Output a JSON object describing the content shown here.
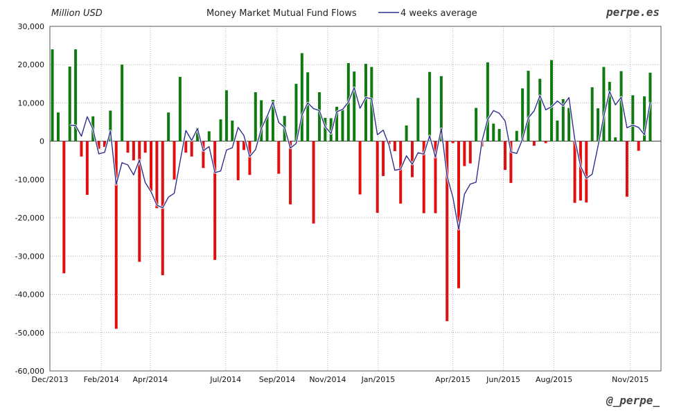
{
  "header": {
    "unit_label": "Million USD",
    "brand_top": "perpe.es",
    "brand_bottom": "@_perpe_"
  },
  "colors": {
    "positive": "#0f7a0f",
    "negative": "#e01010",
    "average_line": "#2e2e8c",
    "grid": "#b0b0b0"
  },
  "chart_data": {
    "type": "bar",
    "title": "Money Market Mutual Fund Flows",
    "legend": [
      {
        "name": "4 weeks average",
        "kind": "line"
      }
    ],
    "legend_position": "top-center",
    "grid": true,
    "xlabel": "",
    "ylabel": "Million USD",
    "ylim": [
      -60000,
      30000
    ],
    "y_ticks": [
      30000,
      20000,
      10000,
      0,
      -10000,
      -20000,
      -30000,
      -40000,
      -50000,
      -60000
    ],
    "y_tick_labels": [
      "30,000",
      "20,000",
      "10,000",
      "0",
      "-10,000",
      "-20,000",
      "-30,000",
      "-40,000",
      "-50,000",
      "-60,000"
    ],
    "x_range": [
      "2013-12-01",
      "2015-12-08"
    ],
    "x_ticks": [
      {
        "date": "2013-12-01",
        "label": "Dec/2013"
      },
      {
        "date": "2014-02-01",
        "label": "Feb/2014"
      },
      {
        "date": "2014-04-01",
        "label": "Apr/2014"
      },
      {
        "date": "2014-07-01",
        "label": "Jul/2014"
      },
      {
        "date": "2014-09-01",
        "label": "Sep/2014"
      },
      {
        "date": "2014-11-01",
        "label": "Nov/2014"
      },
      {
        "date": "2015-01-01",
        "label": "Jan/2015"
      },
      {
        "date": "2015-04-01",
        "label": "Apr/2015"
      },
      {
        "date": "2015-06-01",
        "label": "Jun/2015"
      },
      {
        "date": "2015-08-01",
        "label": "Aug/2015"
      },
      {
        "date": "2015-11-01",
        "label": "Nov/2015"
      }
    ],
    "series": [
      {
        "name": "Money Market Mutual Fund Flows",
        "type": "bar",
        "start_date": "2013-12-04",
        "interval_days": 7,
        "values": [
          24000,
          7500,
          -34500,
          19500,
          24000,
          -4000,
          -14000,
          6500,
          -2000,
          -1500,
          8000,
          -49000,
          20000,
          -3000,
          -5000,
          -31500,
          -3000,
          -13000,
          -17500,
          -35000,
          7500,
          -10000,
          16800,
          -3000,
          -4000,
          3500,
          -7000,
          2600,
          -31000,
          5700,
          13300,
          5400,
          -10200,
          -2300,
          -8800,
          12800,
          10700,
          6600,
          10800,
          -8500,
          6600,
          -16500,
          15000,
          23000,
          18000,
          -21500,
          12800,
          6100,
          6000,
          9000,
          8400,
          20400,
          18200,
          -13900,
          20200,
          19400,
          -18700,
          -9100,
          -800,
          -2600,
          -16300,
          4100,
          -9400,
          11300,
          -18800,
          18100,
          -18800,
          17000,
          -47000,
          -500,
          -38400,
          -6500,
          -5800,
          8700,
          -1400,
          20600,
          4600,
          3200,
          -7500,
          -10900,
          2700,
          13800,
          18400,
          -1200,
          16300,
          -500,
          21200,
          5400,
          11000,
          8700,
          -16100,
          -15500,
          -16000,
          14100,
          8600,
          19400,
          15500,
          1000,
          18300,
          -14500,
          12000,
          -2500,
          11700,
          17900
        ]
      },
      {
        "name": "4 weeks average",
        "type": "line",
        "start_date": "2013-12-04",
        "interval_days": 7,
        "values": [
          null,
          null,
          null,
          4200,
          4100,
          1300,
          6400,
          3100,
          -3300,
          -2900,
          2700,
          -11300,
          -5600,
          -6200,
          -8800,
          -4900,
          -10800,
          -13200,
          -16700,
          -17400,
          -14600,
          -13600,
          -5300,
          2800,
          200,
          3300,
          -2500,
          -1400,
          -8200,
          -7800,
          -2300,
          -1700,
          3600,
          1500,
          -4000,
          -2200,
          3300,
          6500,
          10200,
          4900,
          3600,
          -1800,
          -600,
          6800,
          10000,
          8500,
          8000,
          3800,
          2000,
          7700,
          8300,
          10200,
          14000,
          8600,
          11400,
          11100,
          1700,
          2900,
          -1100,
          -7600,
          -7300,
          -3800,
          -6000,
          -3000,
          -3400,
          1400,
          -4200,
          3300,
          -9100,
          -14600,
          -23000,
          -13800,
          -11200,
          -10700,
          -100,
          5700,
          8000,
          7300,
          5300,
          -2800,
          -3200,
          500,
          6100,
          7900,
          11900,
          8200,
          9000,
          10500,
          9300,
          11400,
          600,
          -6500,
          -9700,
          -8600,
          -1400,
          6400,
          13000,
          9500,
          11500,
          3500,
          4200,
          3600,
          1700,
          10200
        ]
      }
    ]
  }
}
